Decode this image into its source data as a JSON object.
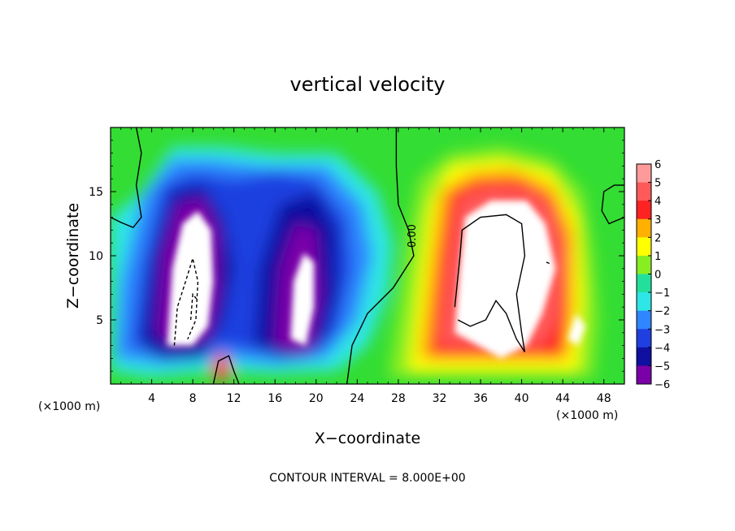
{
  "chart_data": {
    "type": "heatmap",
    "title": "vertical velocity",
    "xlabel": "X−coordinate",
    "ylabel": "Z−coordinate",
    "x_units": "(×1000 m)",
    "x_units_right": "(×1000 m)",
    "xlim": [
      0,
      50
    ],
    "ylim": [
      0,
      20
    ],
    "xticks": [
      4,
      8,
      12,
      16,
      20,
      24,
      28,
      32,
      36,
      40,
      44,
      48
    ],
    "yticks": [
      5,
      10,
      15
    ],
    "colorbar": {
      "ticks": [
        "6",
        "5",
        "4",
        "3",
        "2",
        "1",
        "0",
        "−1",
        "−2",
        "−3",
        "−4",
        "−5",
        "−6"
      ],
      "range": [
        -6,
        6
      ],
      "colors": {
        "-6": "#7a00a8",
        "-5": "#1010a0",
        "-4": "#1f3fe0",
        "-3": "#2f86ff",
        "-2": "#2ee6e6",
        "-1": "#22e09c",
        "0": "#33dd33",
        "1": "#88ee22",
        "2": "#ffff00",
        "3": "#ffb000",
        "4": "#ff2222",
        "5": "#ff5a5a",
        "6": "#ff9a9a"
      }
    },
    "features": [
      {
        "sign": "negative",
        "x": 7.5,
        "z": 9.0,
        "peak": -9
      },
      {
        "sign": "negative",
        "x": 18.5,
        "z": 8.0,
        "peak": -8
      },
      {
        "sign": "positive",
        "x": 37.5,
        "z": 10.5,
        "peak": 9
      },
      {
        "sign": "positive",
        "x": 10.8,
        "z": 1.0,
        "peak": 4
      }
    ],
    "contour_label": "0.00",
    "contour_interval": "CONTOUR INTERVAL = 8.000E+00"
  }
}
